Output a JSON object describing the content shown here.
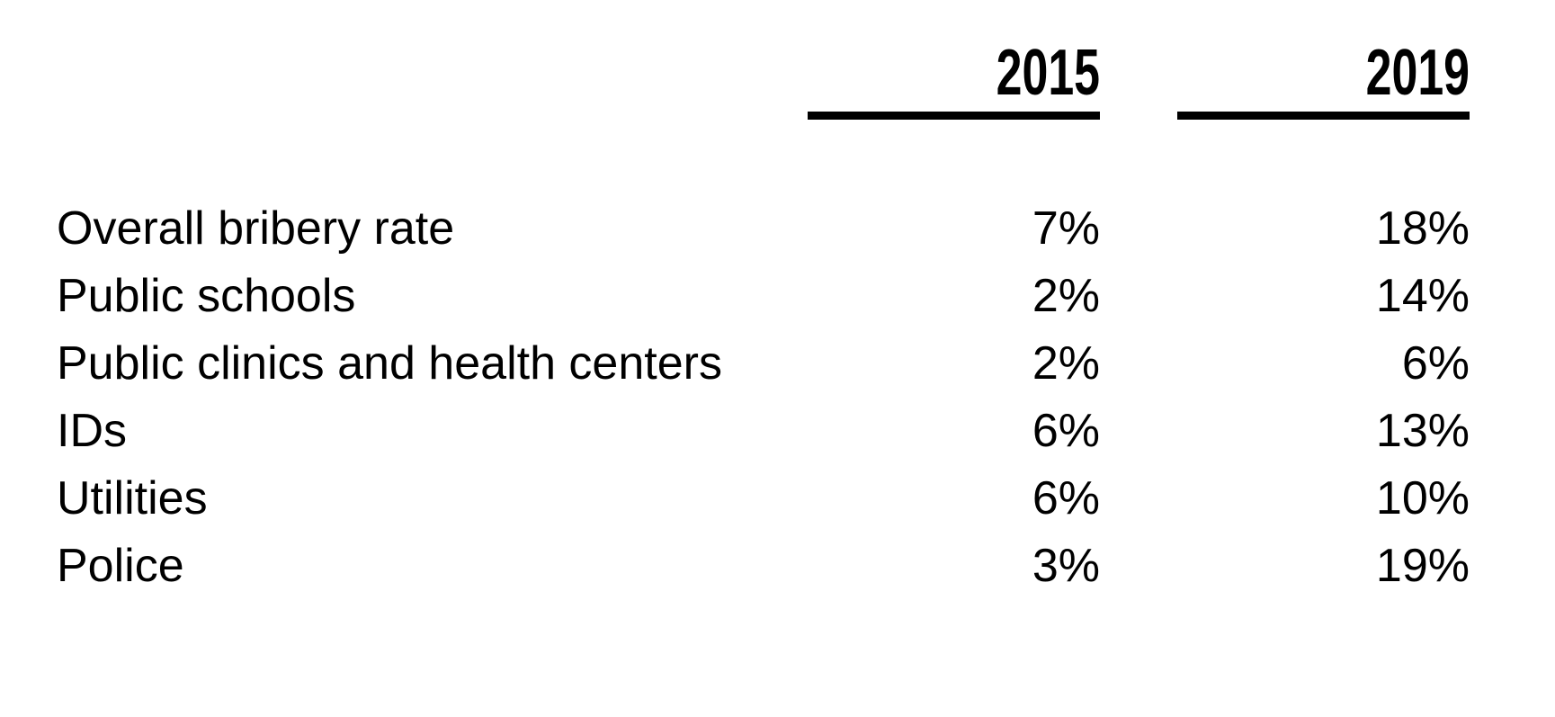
{
  "table": {
    "columns": [
      {
        "label": "2015"
      },
      {
        "label": "2019"
      }
    ],
    "rows": [
      {
        "label": "Overall bribery rate",
        "values": [
          "7%",
          "18%"
        ]
      },
      {
        "label": "Public schools",
        "values": [
          "2%",
          "14%"
        ]
      },
      {
        "label": "Public clinics and health centers",
        "values": [
          "2%",
          "6%"
        ]
      },
      {
        "label": "IDs",
        "values": [
          "6%",
          "13%"
        ]
      },
      {
        "label": "Utilities",
        "values": [
          "6%",
          "10%"
        ]
      },
      {
        "label": "Police",
        "values": [
          "3%",
          "19%"
        ]
      }
    ]
  },
  "colors": {
    "text": "#000000",
    "background": "#ffffff",
    "header_rule": "#000000"
  },
  "chart_data": {
    "type": "table",
    "categories": [
      "Overall bribery rate",
      "Public schools",
      "Public clinics and health centers",
      "IDs",
      "Utilities",
      "Police"
    ],
    "series": [
      {
        "name": "2015",
        "values": [
          7,
          2,
          2,
          6,
          6,
          3
        ]
      },
      {
        "name": "2019",
        "values": [
          18,
          14,
          6,
          13,
          10,
          19
        ]
      }
    ],
    "unit": "%",
    "legend_position": "column-headers",
    "grid": false
  }
}
